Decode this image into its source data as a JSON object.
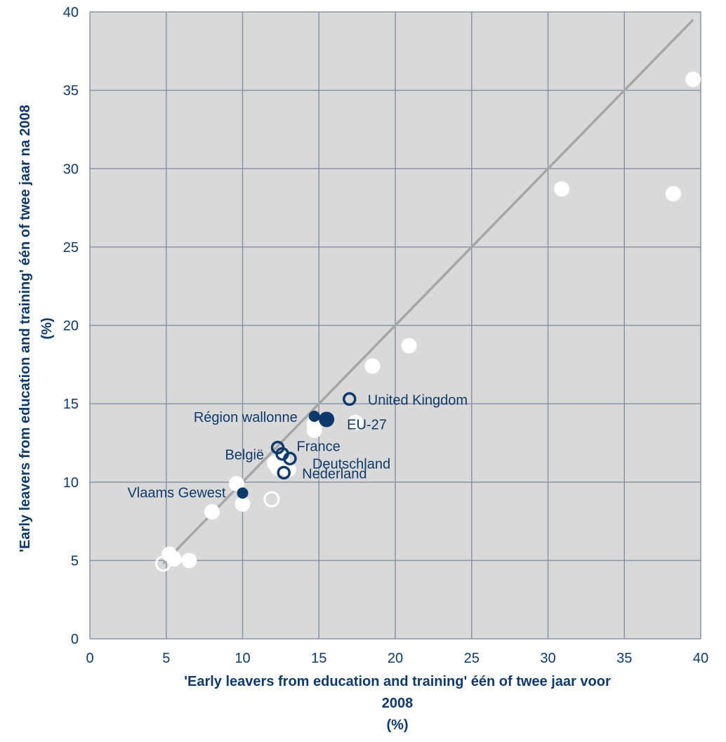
{
  "chart_data": {
    "type": "scatter",
    "xlabel_lines": [
      "'Early leavers from education and training' één of twee jaar voor",
      "2008",
      "(%)"
    ],
    "ylabel_lines": [
      "'Early leavers from education and training' één of twee jaar na  2008",
      "(%)"
    ],
    "xlim": [
      0,
      40
    ],
    "ylim": [
      0,
      40
    ],
    "x_ticks": [
      0,
      5,
      10,
      15,
      20,
      25,
      30,
      35,
      40
    ],
    "y_ticks": [
      0,
      5,
      10,
      15,
      20,
      25,
      30,
      35,
      40
    ],
    "grid": true,
    "diagonal_line": {
      "from": [
        4.8,
        4.8
      ],
      "to": [
        39.5,
        39.5
      ],
      "color": "#a6a6a6"
    },
    "colors": {
      "plot_bg": "#d9d9d9",
      "grid": "#8a94a8",
      "navy": "#0e3a6b",
      "white": "#ffffff"
    },
    "points": [
      {
        "x": 39.5,
        "y": 35.7,
        "style": "white-filled"
      },
      {
        "x": 30.9,
        "y": 28.7,
        "style": "white-filled"
      },
      {
        "x": 38.2,
        "y": 28.4,
        "style": "white-filled"
      },
      {
        "x": 20.9,
        "y": 18.7,
        "style": "white-filled"
      },
      {
        "x": 18.5,
        "y": 17.4,
        "style": "white-filled"
      },
      {
        "x": 17.4,
        "y": 13.8,
        "style": "white-filled"
      },
      {
        "x": 14.7,
        "y": 13.7,
        "style": "white-filled"
      },
      {
        "x": 14.7,
        "y": 13.3,
        "style": "white-filled"
      },
      {
        "x": 12.1,
        "y": 11.2,
        "style": "white-filled"
      },
      {
        "x": 12.3,
        "y": 10.9,
        "style": "white-filled"
      },
      {
        "x": 13.0,
        "y": 10.8,
        "style": "white-filled"
      },
      {
        "x": 12.6,
        "y": 11.5,
        "style": "white-filled"
      },
      {
        "x": 9.6,
        "y": 9.9,
        "style": "white-filled"
      },
      {
        "x": 10.0,
        "y": 8.6,
        "style": "white-filled"
      },
      {
        "x": 8.0,
        "y": 8.1,
        "style": "white-filled"
      },
      {
        "x": 5.2,
        "y": 5.4,
        "style": "white-filled"
      },
      {
        "x": 5.5,
        "y": 5.1,
        "style": "white-filled"
      },
      {
        "x": 6.5,
        "y": 5.0,
        "style": "white-filled"
      },
      {
        "x": 11.9,
        "y": 8.9,
        "style": "white-hollow"
      },
      {
        "x": 4.8,
        "y": 4.8,
        "style": "white-hollow"
      },
      {
        "x": 17.0,
        "y": 15.3,
        "style": "navy-hollow",
        "label": "United Kingdom"
      },
      {
        "x": 14.7,
        "y": 14.2,
        "style": "navy-filled-small",
        "label": "Région wallonne"
      },
      {
        "x": 15.5,
        "y": 14.0,
        "style": "navy-filled-large",
        "label": "EU-27"
      },
      {
        "x": 12.3,
        "y": 12.2,
        "style": "navy-hollow",
        "label": "France"
      },
      {
        "x": 12.6,
        "y": 11.8,
        "style": "navy-hollow",
        "label": "België"
      },
      {
        "x": 13.1,
        "y": 11.5,
        "style": "navy-hollow",
        "label": "Deutschland"
      },
      {
        "x": 12.7,
        "y": 10.6,
        "style": "navy-hollow",
        "label": "Nederland"
      },
      {
        "x": 10.0,
        "y": 9.3,
        "style": "navy-filled-small",
        "label": "Vlaams Gewest"
      }
    ]
  }
}
